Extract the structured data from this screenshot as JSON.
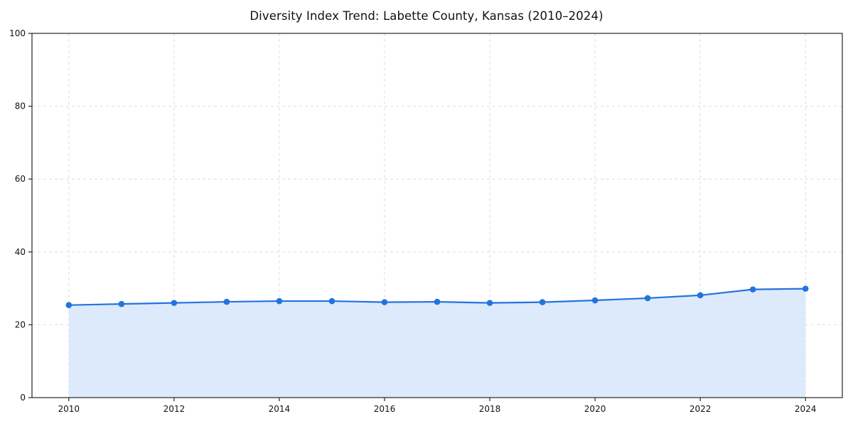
{
  "page": {
    "background_color": "#ffffff"
  },
  "chart_data": {
    "type": "line",
    "title": "Diversity Index Trend: Labette County, Kansas (2010–2024)",
    "series_name": "Diversity Index",
    "x": [
      2010,
      2011,
      2012,
      2013,
      2014,
      2015,
      2016,
      2017,
      2018,
      2019,
      2020,
      2021,
      2022,
      2023,
      2024
    ],
    "values": [
      25.4,
      25.7,
      26.0,
      26.3,
      26.5,
      26.5,
      26.2,
      26.3,
      26.0,
      26.2,
      26.7,
      27.3,
      28.1,
      29.7,
      29.9
    ],
    "xlabel": "",
    "ylabel": "",
    "xlim": [
      2009.3,
      2024.7
    ],
    "ylim": [
      0,
      100
    ],
    "xticks": [
      2010,
      2012,
      2014,
      2016,
      2018,
      2020,
      2022,
      2024
    ],
    "yticks": [
      0,
      20,
      40,
      60,
      80,
      100
    ],
    "grid": true,
    "grid_style": "dashed",
    "legend": "none",
    "colors": {
      "line": "#2273e0",
      "marker": "#2273e0",
      "area_fill": "#ddeafb",
      "grid": "#dedede",
      "axis_border": "#262626",
      "tick_label": "#111111"
    }
  }
}
